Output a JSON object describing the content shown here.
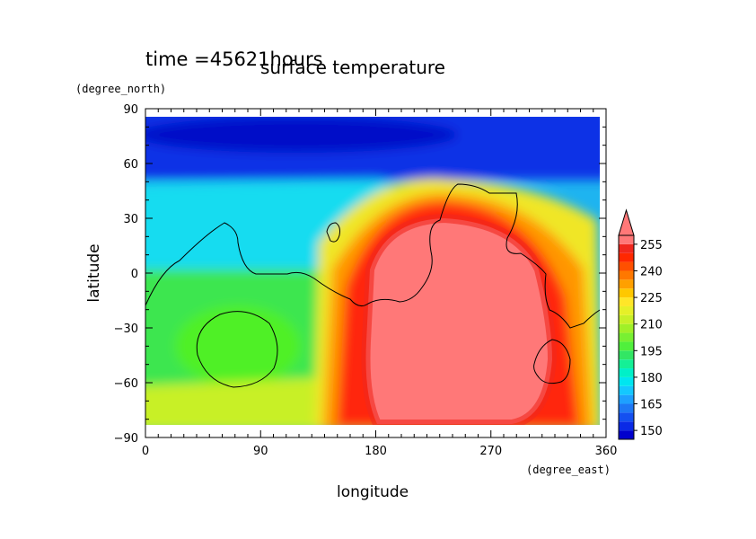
{
  "chart_data": {
    "type": "heatmap",
    "time_label": "time =45621hours",
    "title": "surface temperature",
    "xlabel": "longitude",
    "ylabel": "latitude",
    "x_unit": "(degree_east)",
    "y_unit": "(degree_north)",
    "xlim": [
      0,
      360
    ],
    "ylim": [
      -90,
      90
    ],
    "x_ticks": [
      "0",
      "90",
      "180",
      "270",
      "360"
    ],
    "x_tick_values": [
      0,
      90,
      180,
      270,
      360
    ],
    "y_ticks": [
      "90",
      "60",
      "30",
      "0",
      "−30",
      "−60",
      "−90"
    ],
    "y_tick_values": [
      90,
      60,
      30,
      0,
      -30,
      -60,
      -90
    ],
    "colorbar_labels": [
      "255",
      "240",
      "225",
      "210",
      "195",
      "180",
      "165",
      "150"
    ],
    "colorbar_label_values": [
      255,
      240,
      225,
      210,
      195,
      180,
      165,
      150
    ],
    "colorbar_range": [
      145,
      260
    ],
    "colorbar_step": 5,
    "colorbar_colors": [
      "#0000cd",
      "#0a2ae6",
      "#1450f0",
      "#1e78f5",
      "#1ea0ff",
      "#14c8ff",
      "#00e6f0",
      "#00f0c8",
      "#14f096",
      "#32e664",
      "#50f03c",
      "#78f032",
      "#a0f028",
      "#c8f028",
      "#e6f028",
      "#ffe628",
      "#ffc800",
      "#ffa000",
      "#ff7800",
      "#ff5000",
      "#ff2800",
      "#f0281e",
      "#ff7878"
    ],
    "colorbar_extend_color": "#ff7878",
    "background_color": "#ffffff",
    "field_levels_deg": {
      "description_kind": "contour regions",
      "regions": [
        {
          "level": 150,
          "lon": [
            0,
            360
          ],
          "lat": [
            50,
            85
          ]
        },
        {
          "level": 180,
          "lon": [
            0,
            160
          ],
          "lat": [
            -10,
            50
          ]
        },
        {
          "level": 200,
          "lon": [
            0,
            170
          ],
          "lat": [
            -85,
            -10
          ]
        },
        {
          "level": 230,
          "lon": [
            140,
            360
          ],
          "lat": [
            -85,
            40
          ]
        },
        {
          "level": 250,
          "lon": [
            175,
            310
          ],
          "lat": [
            -85,
            35
          ]
        },
        {
          "level": 260,
          "lon": [
            190,
            300
          ],
          "lat": [
            -80,
            30
          ]
        }
      ]
    }
  }
}
